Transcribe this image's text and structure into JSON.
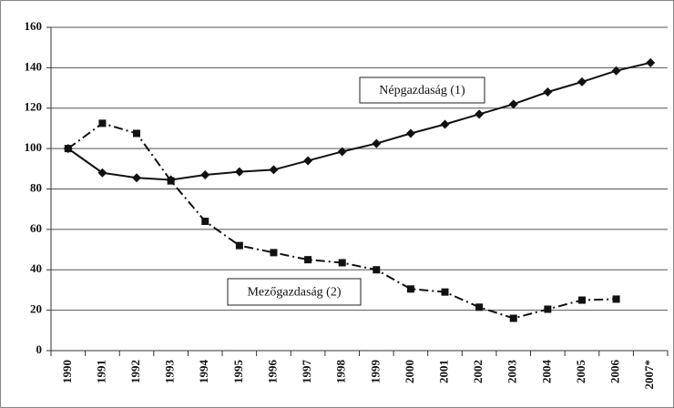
{
  "chart_data": {
    "type": "line",
    "categories": [
      "1990",
      "1991",
      "1992",
      "1993",
      "1994",
      "1995",
      "1996",
      "1997",
      "1998",
      "1999",
      "2000",
      "2001",
      "2002",
      "2003",
      "2004",
      "2005",
      "2006",
      "2007*"
    ],
    "series": [
      {
        "name": "Népgazdaság (1)",
        "color": "#111111",
        "dash": "solid",
        "marker": "diamond",
        "values": [
          100,
          88,
          85.5,
          84.5,
          87,
          88.5,
          89.5,
          94,
          98.5,
          102.5,
          107.5,
          112,
          117,
          122,
          128,
          133,
          138.5,
          142.5
        ]
      },
      {
        "name": "Mezőgazdaság (2)",
        "color": "#111111",
        "dash": "dash-dot",
        "marker": "square",
        "values": [
          100,
          112.5,
          107.5,
          84,
          64,
          52,
          48.5,
          45,
          43.5,
          40,
          30.5,
          29,
          21.5,
          16,
          20.5,
          25,
          25.5,
          null
        ]
      }
    ],
    "ylim": [
      0,
      160
    ],
    "yticks": [
      0,
      20,
      40,
      60,
      80,
      100,
      120,
      140,
      160
    ],
    "grid": true
  }
}
